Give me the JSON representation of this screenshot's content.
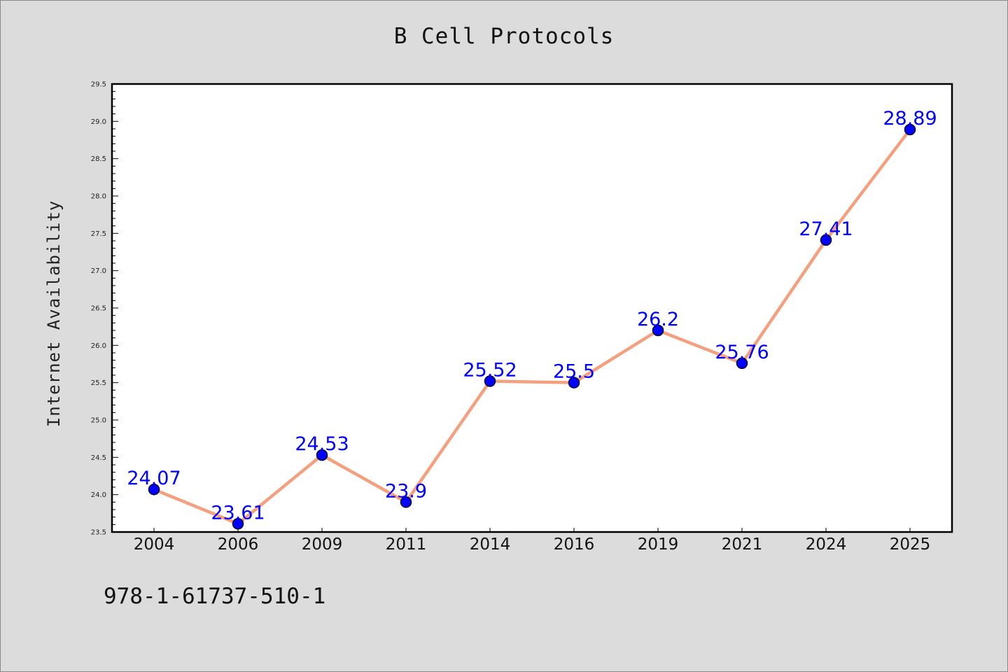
{
  "chart_data": {
    "type": "line",
    "title": "B Cell Protocols",
    "xlabel": "",
    "ylabel": "Internet Availability",
    "categories": [
      "2004",
      "2006",
      "2009",
      "2011",
      "2014",
      "2016",
      "2019",
      "2021",
      "2024",
      "2025"
    ],
    "series": [
      {
        "values": [
          24.07,
          23.61,
          24.53,
          23.9,
          25.52,
          25.5,
          26.2,
          25.76,
          27.41,
          28.89
        ],
        "data_labels": [
          "24.07",
          "23.61",
          "24.53",
          "23.9",
          "25.52",
          "25.5",
          "26.2",
          "25.76",
          "27.41",
          "28.89"
        ],
        "line_color": "#f4a07f",
        "marker_color": "#0000ff"
      }
    ],
    "ylim": [
      23.5,
      29.5
    ],
    "yticks": [
      "23.5",
      "24.0",
      "24.5",
      "25.0",
      "25.5",
      "26.0",
      "26.5",
      "27.0",
      "27.5",
      "28.0",
      "28.5",
      "29.0",
      "29.5"
    ],
    "grid": false,
    "legend": "none",
    "label_color": "#0000ff"
  },
  "footer": {
    "code": "978-1-61737-510-1"
  }
}
